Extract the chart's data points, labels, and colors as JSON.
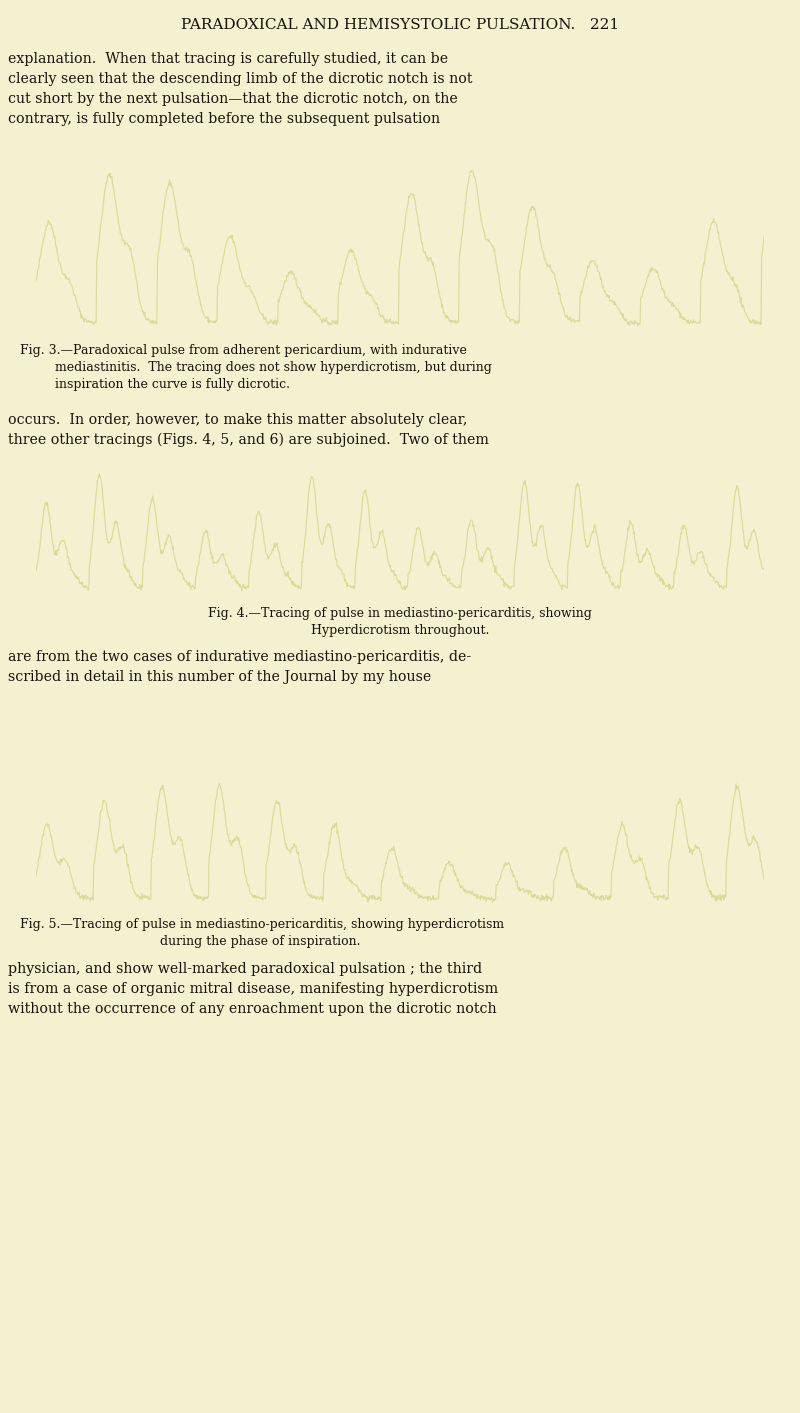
{
  "page_bg": "#f5f0d0",
  "text_color": "#1a1008",
  "image_bg": "#050505",
  "trace_color": "#e8dfa0",
  "page_width": 8.0,
  "page_height": 14.13,
  "header": "PARADOXICAL AND HEMISYSTOLIC PULSATION.   221",
  "para1": "explanation.  When that tracing is carefully studied, it can be\nclearly seen that the descending limb of the dicrotic notch is not\ncut short by the next pulsation—that the dicrotic notch, on the\ncontrary, is fully completed before the subsequent pulsation",
  "fig3_caption_line1": "Fig. 3.—Paradoxical pulse from adherent pericardium, with indurative",
  "fig3_caption_line2": "mediastinitis.  The tracing does not show hyperdicrotism, but during",
  "fig3_caption_line3": "inspiration the curve is fully dicrotic.",
  "para2": "occurs.  In order, however, to make this matter absolutely clear,\nthree other tracings (Figs. 4, 5, and 6) are subjoined.  Two of them",
  "fig4_caption_line1": "Fig. 4.—Tracing of pulse in mediastino-pericarditis, showing",
  "fig4_caption_line2": "Hyperdicrotism throughout.",
  "para3": "are from the two cases of indurative mediastino-pericarditis, de-\nscribed in detail in this number of the Journal by my house",
  "fig5_caption_line1": "Fig. 5.—Tracing of pulse in mediastino-pericarditis, showing hyperdicrotism",
  "fig5_caption_line2": "during the phase of inspiration.",
  "para4": "physician, and show well-marked paradoxical pulsation ; the third\nis from a case of organic mitral disease, manifesting hyperdicrotism\nwithout the occurrence of any enroachment upon the dicrotic notch"
}
